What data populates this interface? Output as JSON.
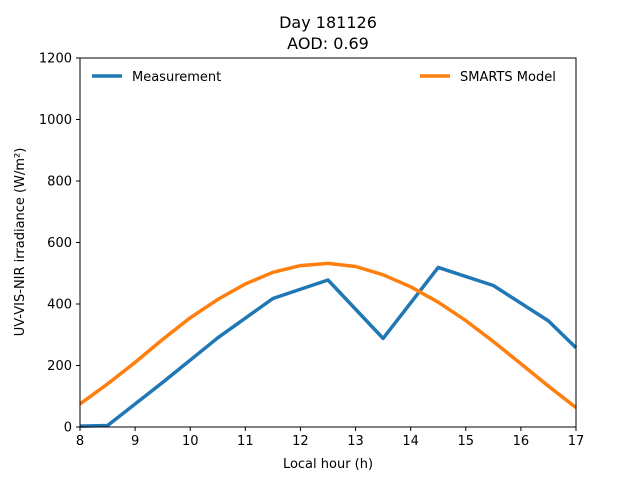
{
  "chart_data": {
    "type": "line",
    "title_line1": "Day 181126",
    "title_line2": "AOD: 0.69",
    "xlabel": "Local hour (h)",
    "ylabel": "UV-VIS-NIR irradiance (W/m²)",
    "xlim": [
      8,
      17
    ],
    "ylim": [
      0,
      1200
    ],
    "xticks": [
      "8",
      "9",
      "10",
      "11",
      "12",
      "13",
      "14",
      "15",
      "16",
      "17"
    ],
    "yticks": [
      "0",
      "200",
      "400",
      "600",
      "800",
      "1000",
      "1200"
    ],
    "grid": false,
    "legend_placement": "top",
    "series": [
      {
        "name": "Measurement",
        "color": "#1f77b4",
        "x": [
          8,
          8.5,
          9.5,
          10.5,
          11.5,
          12.5,
          13.5,
          14.5,
          15.5,
          16.5,
          17
        ],
        "y": [
          3,
          5,
          145,
          290,
          418,
          478,
          288,
          519,
          460,
          345,
          258
        ]
      },
      {
        "name": "SMARTS Model",
        "color": "#ff7f0e",
        "x": [
          8,
          8.5,
          9,
          9.5,
          10,
          10.5,
          11,
          11.5,
          12,
          12.5,
          13,
          13.5,
          14,
          14.5,
          15,
          15.5,
          16,
          16.5,
          17
        ],
        "y": [
          75,
          140,
          210,
          285,
          355,
          415,
          465,
          503,
          525,
          532,
          522,
          495,
          456,
          406,
          346,
          278,
          206,
          133,
          63
        ]
      }
    ]
  }
}
